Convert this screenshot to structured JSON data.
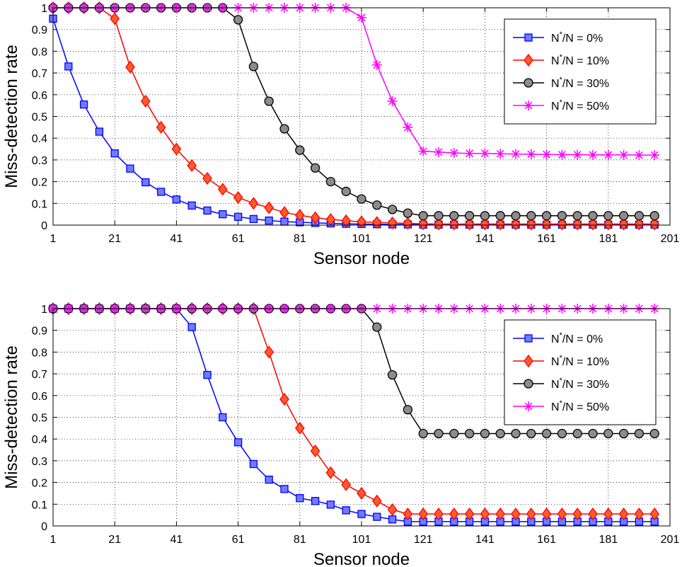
{
  "chart_data": [
    {
      "type": "line",
      "xlabel": "Sensor node",
      "ylabel": "Miss-detection rate",
      "xlim": [
        1,
        201
      ],
      "ylim": [
        0,
        1
      ],
      "xticks": [
        1,
        21,
        41,
        61,
        81,
        101,
        121,
        141,
        161,
        181,
        201
      ],
      "yticks": [
        0,
        0.1,
        0.2,
        0.3,
        0.4,
        0.5,
        0.6,
        0.7,
        0.8,
        0.9,
        1
      ],
      "grid": true,
      "legend_position": "top-right",
      "x": [
        1,
        6,
        11,
        16,
        21,
        26,
        31,
        36,
        41,
        46,
        51,
        56,
        61,
        66,
        71,
        76,
        81,
        86,
        91,
        96,
        101,
        106,
        111,
        116,
        121,
        126,
        131,
        136,
        141,
        146,
        151,
        156,
        161,
        166,
        171,
        176,
        181,
        186,
        191,
        196
      ],
      "series": [
        {
          "name_main": "N",
          "name_sup": "*",
          "name_rest": "/N = 0%",
          "color": "#0000ff",
          "fill": "#6f7cff",
          "marker": "square",
          "values": [
            0.95,
            0.73,
            0.555,
            0.43,
            0.33,
            0.26,
            0.197,
            0.153,
            0.118,
            0.09,
            0.067,
            0.05,
            0.038,
            0.028,
            0.021,
            0.016,
            0.013,
            0.01,
            0.008,
            0.006,
            0.005,
            0.004,
            0.003,
            0.003,
            0.002,
            0.002,
            0.002,
            0.002,
            0.002,
            0.002,
            0.002,
            0.002,
            0.002,
            0.002,
            0.002,
            0.002,
            0.002,
            0.002,
            0.002,
            0.002
          ]
        },
        {
          "name_main": "N",
          "name_sup": "*",
          "name_rest": "/N = 10%",
          "color": "#ff0000",
          "fill": "#ff5a2a",
          "marker": "diamond",
          "values": [
            1,
            1,
            1,
            1,
            0.95,
            0.727,
            0.57,
            0.45,
            0.35,
            0.274,
            0.215,
            0.165,
            0.127,
            0.1,
            0.08,
            0.058,
            0.045,
            0.034,
            0.026,
            0.02,
            0.015,
            0.012,
            0.01,
            0.008,
            0.006,
            0.005,
            0.005,
            0.005,
            0.005,
            0.005,
            0.005,
            0.005,
            0.005,
            0.005,
            0.005,
            0.005,
            0.005,
            0.005,
            0.005,
            0.005
          ]
        },
        {
          "name_main": "N",
          "name_sup": "*",
          "name_rest": "/N = 30%",
          "color": "#000000",
          "fill": "#8c8c8c",
          "marker": "circle",
          "values": [
            1,
            1,
            1,
            1,
            1,
            1,
            1,
            1,
            1,
            1,
            1,
            1,
            0.945,
            0.73,
            0.57,
            0.443,
            0.345,
            0.263,
            0.2,
            0.155,
            0.12,
            0.092,
            0.072,
            0.055,
            0.043,
            0.043,
            0.043,
            0.043,
            0.043,
            0.043,
            0.043,
            0.043,
            0.043,
            0.043,
            0.043,
            0.043,
            0.043,
            0.043,
            0.043,
            0.043
          ]
        },
        {
          "name_main": "N",
          "name_sup": "*",
          "name_rest": "/N = 50%",
          "color": "#ff00ff",
          "fill": "none",
          "marker": "asterisk",
          "values": [
            1,
            1,
            1,
            1,
            1,
            1,
            1,
            1,
            1,
            1,
            1,
            1,
            1,
            1,
            1,
            1,
            1,
            1,
            1,
            1,
            0.955,
            0.737,
            0.57,
            0.45,
            0.34,
            0.336,
            0.332,
            0.33,
            0.33,
            0.328,
            0.327,
            0.326,
            0.325,
            0.324,
            0.324,
            0.323,
            0.323,
            0.323,
            0.322,
            0.322
          ]
        }
      ]
    },
    {
      "type": "line",
      "xlabel": "Sensor node",
      "ylabel": "Miss-detection rate",
      "xlim": [
        1,
        201
      ],
      "ylim": [
        0,
        1
      ],
      "xticks": [
        1,
        21,
        41,
        61,
        81,
        101,
        121,
        141,
        161,
        181,
        201
      ],
      "yticks": [
        0,
        0.1,
        0.2,
        0.3,
        0.4,
        0.5,
        0.6,
        0.7,
        0.8,
        0.9,
        1
      ],
      "grid": true,
      "legend_position": "right",
      "x": [
        1,
        6,
        11,
        16,
        21,
        26,
        31,
        36,
        41,
        46,
        51,
        56,
        61,
        66,
        71,
        76,
        81,
        86,
        91,
        96,
        101,
        106,
        111,
        116,
        121,
        126,
        131,
        136,
        141,
        146,
        151,
        156,
        161,
        166,
        171,
        176,
        181,
        186,
        191,
        196
      ],
      "series": [
        {
          "name_main": "N",
          "name_sup": "*",
          "name_rest": "/N = 0%",
          "color": "#0000ff",
          "fill": "#6f7cff",
          "marker": "square",
          "values": [
            1,
            1,
            1,
            1,
            1,
            1,
            1,
            1,
            1,
            0.915,
            0.695,
            0.5,
            0.385,
            0.285,
            0.213,
            0.17,
            0.128,
            0.115,
            0.098,
            0.072,
            0.055,
            0.042,
            0.03,
            0.02,
            0.02,
            0.02,
            0.02,
            0.02,
            0.02,
            0.02,
            0.02,
            0.02,
            0.02,
            0.02,
            0.02,
            0.02,
            0.02,
            0.02,
            0.02,
            0.02
          ]
        },
        {
          "name_main": "N",
          "name_sup": "*",
          "name_rest": "/N = 10%",
          "color": "#ff0000",
          "fill": "#ff5a2a",
          "marker": "diamond",
          "values": [
            1,
            1,
            1,
            1,
            1,
            1,
            1,
            1,
            1,
            1,
            1,
            1,
            1,
            1,
            0.8,
            0.583,
            0.45,
            0.345,
            0.245,
            0.19,
            0.15,
            0.115,
            0.075,
            0.055,
            0.055,
            0.055,
            0.055,
            0.055,
            0.055,
            0.055,
            0.055,
            0.055,
            0.055,
            0.055,
            0.055,
            0.055,
            0.055,
            0.055,
            0.055,
            0.055
          ]
        },
        {
          "name_main": "N",
          "name_sup": "*",
          "name_rest": "/N = 30%",
          "color": "#000000",
          "fill": "#8c8c8c",
          "marker": "circle",
          "values": [
            1,
            1,
            1,
            1,
            1,
            1,
            1,
            1,
            1,
            1,
            1,
            1,
            1,
            1,
            1,
            1,
            1,
            1,
            1,
            1,
            1,
            0.915,
            0.695,
            0.535,
            0.425,
            0.425,
            0.425,
            0.425,
            0.425,
            0.425,
            0.425,
            0.425,
            0.425,
            0.425,
            0.425,
            0.425,
            0.425,
            0.425,
            0.425,
            0.425
          ]
        },
        {
          "name_main": "N",
          "name_sup": "*",
          "name_rest": "/N = 50%",
          "color": "#ff00ff",
          "fill": "none",
          "marker": "asterisk",
          "values": [
            1,
            1,
            1,
            1,
            1,
            1,
            1,
            1,
            1,
            1,
            1,
            1,
            1,
            1,
            1,
            1,
            1,
            1,
            1,
            1,
            1,
            1,
            1,
            1,
            1,
            1,
            1,
            1,
            1,
            1,
            1,
            1,
            1,
            1,
            1,
            1,
            1,
            1,
            1,
            1
          ]
        }
      ]
    }
  ]
}
